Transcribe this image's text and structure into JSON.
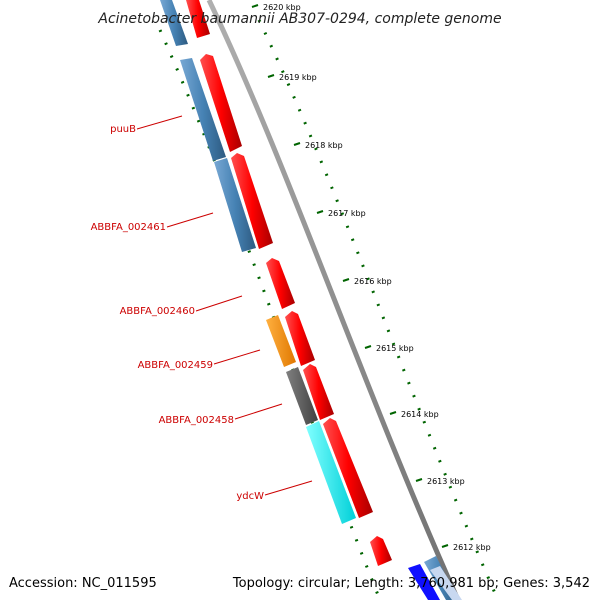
{
  "title": "Acinetobacter baumannii AB307-0294, complete genome",
  "footer": {
    "accession": "Accession: NC_011595",
    "summary": "Topology: circular; Length: 3,760,981 bp; Genes: 3,542"
  },
  "colors": {
    "backbone": "#808080",
    "forward_cds": "#ff0000",
    "reverse_cds": "#4682b4",
    "tick": "#006400",
    "label": "#cc0000",
    "orange_feature": "#ff8c00",
    "gray_feature": "#606060",
    "cyan_feature": "#00ffff",
    "blue_feature": "#0000ff"
  },
  "ticks": [
    {
      "label": "2620 kbp"
    },
    {
      "label": "2619 kbp"
    },
    {
      "label": "2618 kbp"
    },
    {
      "label": "2617 kbp"
    },
    {
      "label": "2616 kbp"
    },
    {
      "label": "2615 kbp"
    },
    {
      "label": "2614 kbp"
    },
    {
      "label": "2613 kbp"
    },
    {
      "label": "2612 kbp"
    }
  ],
  "gene_labels": [
    {
      "text": "puuB"
    },
    {
      "text": "ABBFA_002461"
    },
    {
      "text": "ABBFA_002460"
    },
    {
      "text": "ABBFA_002459"
    },
    {
      "text": "ABBFA_002458"
    },
    {
      "text": "ydcW"
    }
  ]
}
